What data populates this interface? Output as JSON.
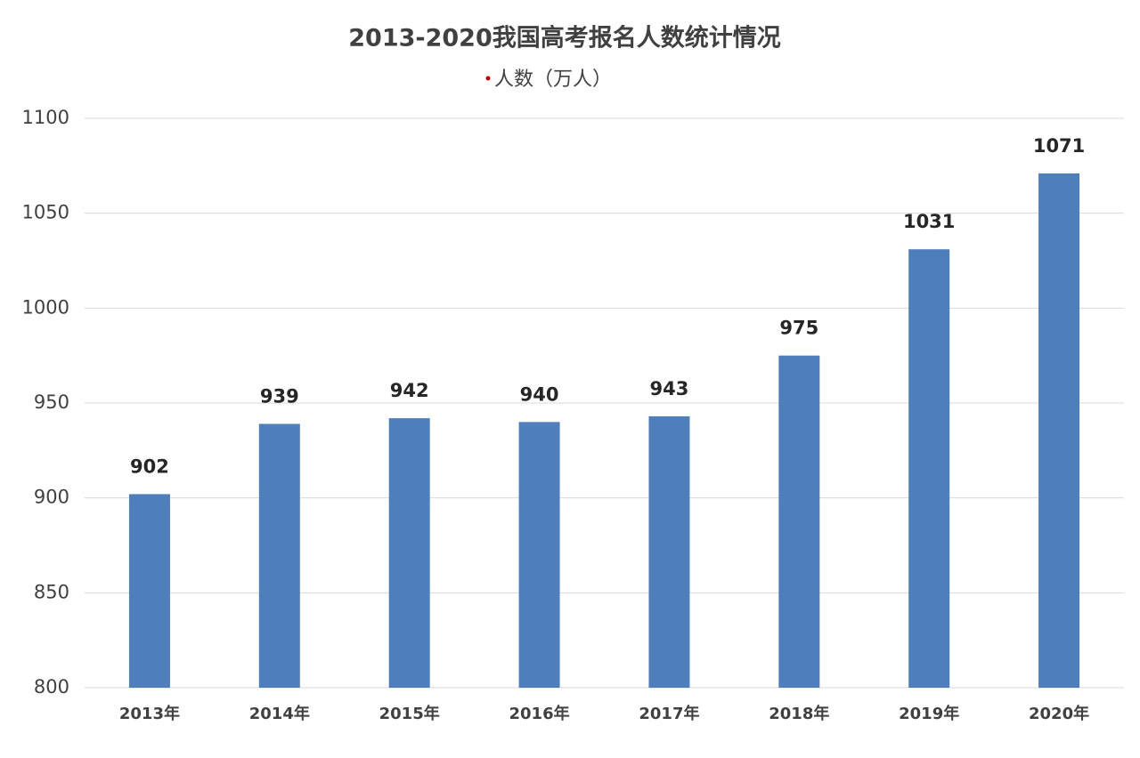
{
  "chart_data": {
    "type": "bar",
    "title": "2013-2020我国高考报名人数统计情况",
    "categories": [
      "2013年",
      "2014年",
      "2015年",
      "2016年",
      "2017年",
      "2018年",
      "2019年",
      "2020年"
    ],
    "series": [
      {
        "name": "人数（万人）",
        "color": "#4f7fba",
        "values": [
          902,
          939,
          942,
          940,
          943,
          975,
          1031,
          1071
        ]
      }
    ],
    "ylim": [
      800,
      1100
    ],
    "yticks": [
      800,
      850,
      900,
      950,
      1000,
      1050,
      1100
    ],
    "grid": true,
    "data_labels": true
  }
}
